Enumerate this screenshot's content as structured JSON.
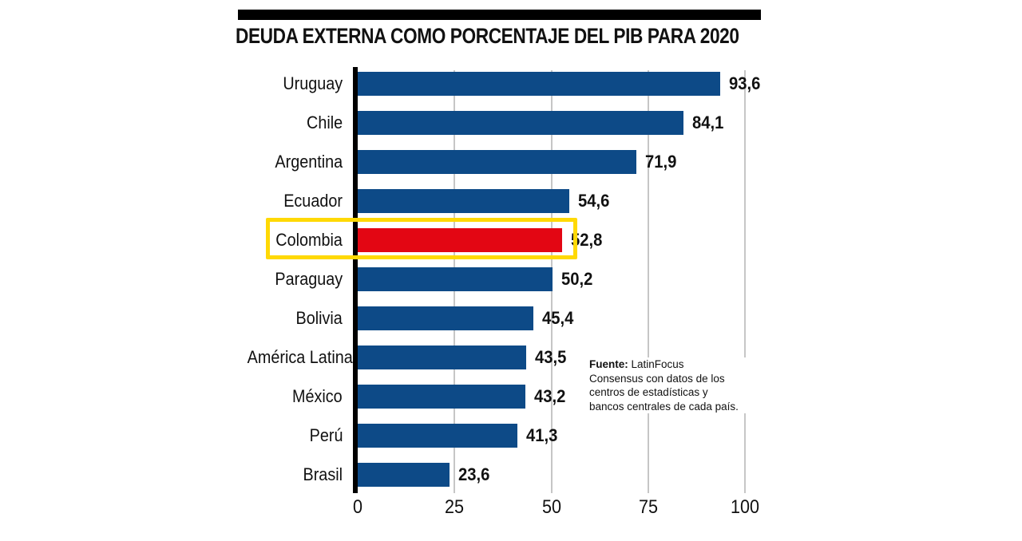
{
  "chart_data": {
    "type": "bar",
    "orientation": "horizontal",
    "title": "DEUDA EXTERNA COMO PORCENTAJE DEL PIB PARA 2020",
    "categories": [
      "Uruguay",
      "Chile",
      "Argentina",
      "Ecuador",
      "Colombia",
      "Paraguay",
      "Bolivia",
      "América Latina",
      "México",
      "Perú",
      "Brasil"
    ],
    "values": [
      93.6,
      84.1,
      71.9,
      54.6,
      52.8,
      50.2,
      45.4,
      43.5,
      43.2,
      41.3,
      23.6
    ],
    "value_labels": [
      "93,6",
      "84,1",
      "71,9",
      "54,6",
      "52,8",
      "50,2",
      "45,4",
      "43,5",
      "43,2",
      "41,3",
      "23,6"
    ],
    "highlighted_category": "Colombia",
    "highlight_index": 4,
    "xlim": [
      0,
      100
    ],
    "x_ticks": [
      "0",
      "25",
      "50",
      "75",
      "100"
    ],
    "grid": true,
    "legend": "none",
    "colors": {
      "bar": "#0D4A87",
      "highlight_bar": "#E30613",
      "highlight_box": "#FFD905",
      "gridline": "#C6C6C6",
      "axis": "#000000",
      "title_rule": "#000000",
      "text": "#111111"
    },
    "source_note": {
      "label": "Fuente:",
      "lines": [
        "LatinFocus",
        "Consensus con datos de los",
        "centros de estadísticas y",
        "bancos centrales de cada país."
      ]
    }
  }
}
